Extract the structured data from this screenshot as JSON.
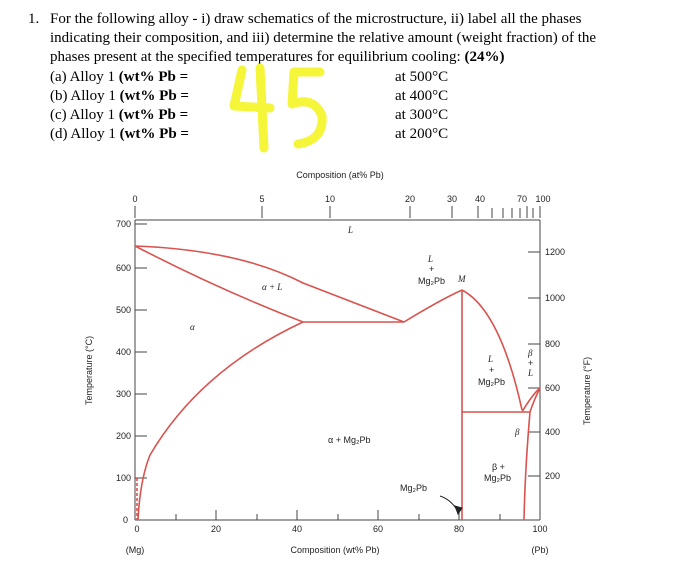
{
  "question": {
    "number": "1.",
    "line1": "For the following alloy - i) draw schematics of the microstructure, ii) label all the phases",
    "line2": "indicating their composition, and iii) determine the relative amount (weight fraction) of the",
    "line3_a": "phases present at the specified temperatures for equilibrium cooling:",
    "line3_b": "(24%)"
  },
  "alloys": [
    {
      "label": "(a) Alloy 1 (wt% Pb =",
      "temp": "at 500°C"
    },
    {
      "label": "(b) Alloy 1 (wt% Pb =",
      "temp": "at 400°C"
    },
    {
      "label": "(c) Alloy 1 (wt% Pb =",
      "temp": "at 300°C"
    },
    {
      "label": "(d) Alloy 1 (wt% Pb =",
      "temp": "at 200°C"
    }
  ],
  "handwritten_value": "45",
  "highlight_color": "#f5f53a",
  "diagram": {
    "top_axis_title": "Composition (at% Pb)",
    "top_ticks": [
      "0",
      "5",
      "10",
      "20",
      "30",
      "40",
      "70",
      "100"
    ],
    "bottom_axis_title": "Composition (wt% Pb)",
    "bottom_ticks": [
      "0",
      "20",
      "40",
      "60",
      "80",
      "100"
    ],
    "bottom_left_note": "(Mg)",
    "bottom_right_note": "(Pb)",
    "left_axis_title": "Temperature (°C)",
    "left_ticks": [
      "0",
      "100",
      "200",
      "300",
      "400",
      "500",
      "600",
      "700"
    ],
    "right_axis_title": "Temperature (°F)",
    "right_ticks": [
      "200",
      "400",
      "600",
      "800",
      "1000",
      "1200"
    ],
    "line_color": "#d9534f",
    "labels": {
      "L": "L",
      "alpha_L": "α + L",
      "alpha": "α",
      "L_plus": "L",
      "plus1": "+",
      "mg2pb_1": "Mg₂Pb",
      "M": "M",
      "L2": "L",
      "plus2": "+",
      "mg2pb_2": "Mg₂Pb",
      "beta1": "β",
      "plus3": "+",
      "L3": "L",
      "alpha_mg2pb": "α  + Mg₂Pb",
      "beta2": "β",
      "beta_plus": "β +",
      "mg2pb_3": "Mg₂Pb",
      "mg2pb_bottom": "Mg₂Pb"
    }
  }
}
